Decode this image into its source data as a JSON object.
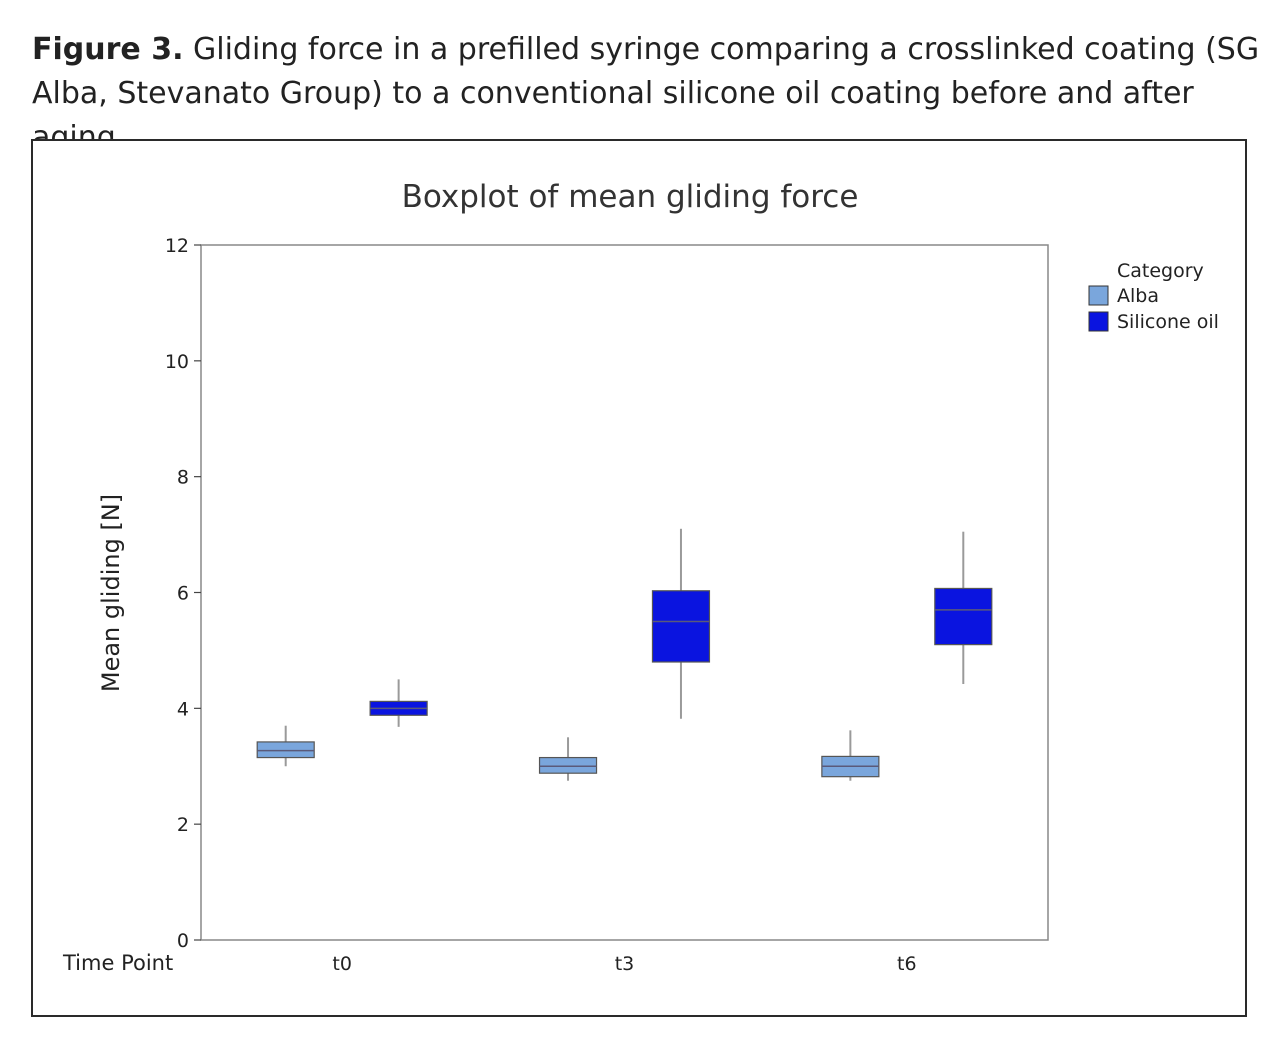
{
  "caption": {
    "label": "Figure 3.",
    "text": "Gliding force in a prefilled syringe comparing a crosslinked coating (SG Alba, Stevanato Group) to a conventional silicone oil coating before and after aging."
  },
  "chart_data": {
    "type": "boxplot",
    "title": "Boxplot of mean gliding force",
    "ylabel": "Mean gliding [N]",
    "xlabel": "Time Point",
    "ylim": [
      0,
      12
    ],
    "yticks": [
      0,
      2,
      4,
      6,
      8,
      10,
      12
    ],
    "categories": [
      "t0",
      "t3",
      "t6"
    ],
    "legend": {
      "title": "Category",
      "position": "right"
    },
    "series": [
      {
        "name": "Alba",
        "color": "#7aa6dc",
        "boxes": [
          {
            "category": "t0",
            "min": 3.0,
            "q1": 3.15,
            "median": 3.27,
            "q3": 3.42,
            "max": 3.7
          },
          {
            "category": "t3",
            "min": 2.75,
            "q1": 2.88,
            "median": 3.0,
            "q3": 3.15,
            "max": 3.5
          },
          {
            "category": "t6",
            "min": 2.75,
            "q1": 2.82,
            "median": 3.0,
            "q3": 3.17,
            "max": 3.62
          }
        ]
      },
      {
        "name": "Silicone oil",
        "color": "#0a14e0",
        "boxes": [
          {
            "category": "t0",
            "min": 3.68,
            "q1": 3.88,
            "median": 4.0,
            "q3": 4.12,
            "max": 4.5
          },
          {
            "category": "t3",
            "min": 3.82,
            "q1": 4.8,
            "median": 5.5,
            "q3": 6.03,
            "max": 7.1
          },
          {
            "category": "t6",
            "min": 4.42,
            "q1": 5.1,
            "median": 5.7,
            "q3": 6.07,
            "max": 7.05
          }
        ]
      }
    ]
  }
}
